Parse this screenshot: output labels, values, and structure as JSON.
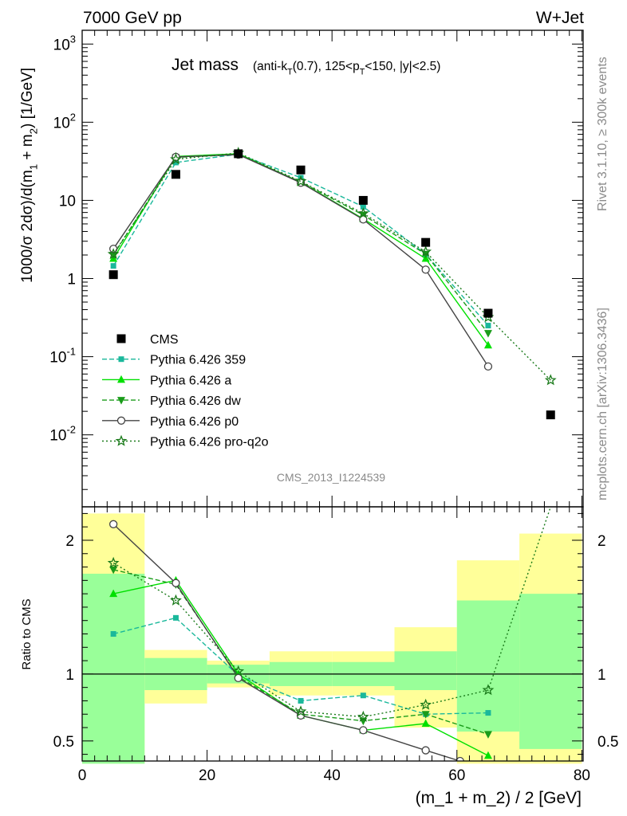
{
  "header": {
    "left": "7000 GeV pp",
    "right": "W+Jet"
  },
  "side_labels": {
    "rivet": "Rivet 3.1.10, ≥ 300k events",
    "mcplots": "mcplots.cern.ch [arXiv:1306.3436]"
  },
  "watermark": "CMS_2013_I1224539",
  "plot_title": {
    "main": "Jet mass",
    "sub": "(anti-k_T(0.7), 125<p_T<150, |y|<2.5)"
  },
  "chart_data": [
    {
      "type": "line",
      "panel": "main",
      "ylabel": "1000/σ 2dσ)/d(m_1 + m_2) [1/GeV]",
      "yscale": "log",
      "xlim": [
        -2,
        80
      ],
      "ylim": [
        0.0012,
        1500
      ],
      "y_ticks": [
        "10^-2",
        "10^-1",
        "1",
        "10",
        "10^2",
        "10^3"
      ],
      "data": {
        "name": "CMS",
        "x": [
          5,
          15,
          25,
          35,
          45,
          55,
          65,
          75
        ],
        "y": [
          1.12,
          21.5,
          39.5,
          24.5,
          10.0,
          2.9,
          0.36,
          0.018
        ]
      },
      "series": [
        {
          "name": "Pythia 6.426 359",
          "color": "#1ab89b",
          "dash": "6,3",
          "marker": "square",
          "x": [
            5,
            15,
            25,
            35,
            45,
            55,
            65
          ],
          "y": [
            1.45,
            30.5,
            39.0,
            19.5,
            8.3,
            2.05,
            0.25
          ]
        },
        {
          "name": "Pythia 6.426 a",
          "color": "#00e000",
          "dash": "",
          "marker": "triangle-up",
          "x": [
            5,
            15,
            25,
            35,
            45,
            55,
            65
          ],
          "y": [
            1.8,
            36.5,
            39.5,
            17.0,
            5.8,
            1.8,
            0.14
          ]
        },
        {
          "name": "Pythia 6.426 dw",
          "color": "#1a9c1a",
          "dash": "6,3",
          "marker": "triangle-down",
          "x": [
            5,
            15,
            25,
            35,
            45,
            55,
            65
          ],
          "y": [
            2.0,
            35.5,
            38.5,
            17.2,
            6.5,
            2.05,
            0.2
          ]
        },
        {
          "name": "Pythia 6.426 p0",
          "color": "#444444",
          "dash": "",
          "marker": "circle-open",
          "x": [
            5,
            15,
            25,
            35,
            45,
            55,
            65
          ],
          "y": [
            2.4,
            36.0,
            38.5,
            16.8,
            5.7,
            1.3,
            0.075
          ]
        },
        {
          "name": "Pythia 6.426 pro-q2o",
          "color": "#1a7a1a",
          "dash": "2,3",
          "marker": "star-open",
          "x": [
            5,
            15,
            25,
            35,
            45,
            55,
            65,
            75
          ],
          "y": [
            2.05,
            33.5,
            40.5,
            17.5,
            6.8,
            2.2,
            0.32,
            0.05
          ]
        }
      ]
    },
    {
      "type": "line",
      "panel": "ratio",
      "xlabel": "(m_1 + m_2) / 2 [GeV]",
      "ylabel": "Ratio to CMS",
      "xlim": [
        -2,
        80
      ],
      "ylim": [
        0.35,
        2.25
      ],
      "x_ticks": [
        0,
        20,
        40,
        60,
        80
      ],
      "y_ticks": [
        0.5,
        1,
        2
      ],
      "reference": 1,
      "bands": [
        {
          "x": [
            0,
            10
          ],
          "stat": [
            0.33,
            1.75
          ],
          "total": [
            0.33,
            2.2
          ]
        },
        {
          "x": [
            10,
            20
          ],
          "stat": [
            0.88,
            1.12
          ],
          "total": [
            0.78,
            1.18
          ]
        },
        {
          "x": [
            20,
            30
          ],
          "stat": [
            0.93,
            1.07
          ],
          "total": [
            0.9,
            1.1
          ]
        },
        {
          "x": [
            30,
            40
          ],
          "stat": [
            0.91,
            1.09
          ],
          "total": [
            0.84,
            1.17
          ]
        },
        {
          "x": [
            40,
            50
          ],
          "stat": [
            0.91,
            1.09
          ],
          "total": [
            0.84,
            1.17
          ]
        },
        {
          "x": [
            50,
            60
          ],
          "stat": [
            0.88,
            1.17
          ],
          "total": [
            0.6,
            1.35
          ]
        },
        {
          "x": [
            60,
            70
          ],
          "stat": [
            0.57,
            1.55
          ],
          "total": [
            0.33,
            1.85
          ]
        },
        {
          "x": [
            70,
            80
          ],
          "stat": [
            0.44,
            1.6
          ],
          "total": [
            0.33,
            2.05
          ]
        }
      ],
      "series": [
        {
          "name": "Pythia 6.426 359",
          "x": [
            5,
            15,
            25,
            35,
            45,
            55,
            65
          ],
          "y": [
            1.3,
            1.42,
            0.99,
            0.8,
            0.84,
            0.7,
            0.71
          ]
        },
        {
          "name": "Pythia 6.426 a",
          "x": [
            5,
            15,
            25,
            35,
            45,
            55,
            65
          ],
          "y": [
            1.6,
            1.7,
            1.0,
            0.69,
            0.58,
            0.63,
            0.39
          ]
        },
        {
          "name": "Pythia 6.426 dw",
          "x": [
            5,
            15,
            25,
            35,
            45,
            55,
            65
          ],
          "y": [
            1.78,
            1.67,
            0.98,
            0.7,
            0.65,
            0.7,
            0.55
          ]
        },
        {
          "name": "Pythia 6.426 p0",
          "x": [
            5,
            15,
            25,
            35,
            45,
            55,
            60.5
          ],
          "y": [
            2.12,
            1.68,
            0.97,
            0.69,
            0.58,
            0.43,
            0.35
          ]
        },
        {
          "name": "Pythia 6.426 pro-q2o",
          "x": [
            5,
            15,
            25,
            35,
            45,
            55,
            65,
            75
          ],
          "y": [
            1.83,
            1.55,
            1.02,
            0.72,
            0.68,
            0.77,
            0.88,
            2.25
          ]
        }
      ]
    }
  ],
  "colors": {
    "band_stat": "#99ff99",
    "band_total": "#ffff99",
    "data": "#000000"
  }
}
